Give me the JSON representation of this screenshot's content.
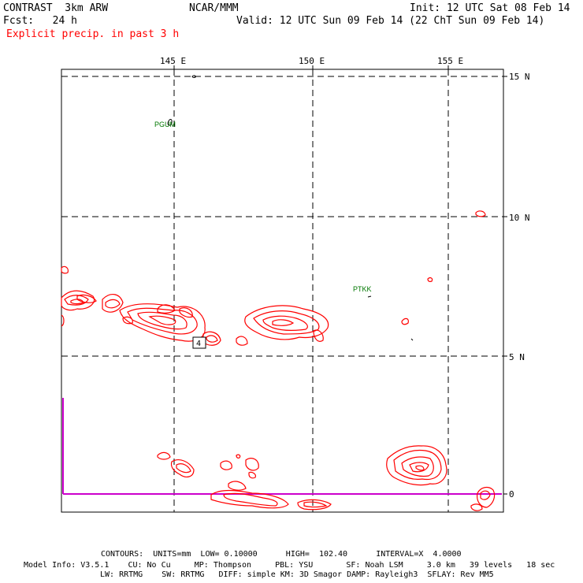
{
  "header": {
    "model_title": "CONTRAST  3km ARW",
    "org": "NCAR/MMM",
    "init": "Init: 12 UTC Sat 08 Feb 14",
    "fcst": "Fcst:   24 h",
    "valid": "Valid: 12 UTC Sun 09 Feb 14 (22 ChT Sun 09 Feb 14)",
    "field": "Explicit precip. in past 3 h"
  },
  "map": {
    "lon_labels": [
      "145 E",
      "150 E",
      "155 E"
    ],
    "lat_labels": [
      "15 N",
      "10 N",
      "5 N",
      "0"
    ],
    "stations": [
      "PGUM",
      "PTKK"
    ],
    "box_label": "4",
    "contour_color": "#ff0000",
    "equator_color": "#cc00cc"
  },
  "footer": {
    "contours": "CONTOURS:  UNITS=mm  LOW= 0.10000      HIGH=  102.40      INTERVAL=X  4.0000",
    "model_info_1": "Model Info: V3.5.1    CU: No Cu     MP: Thompson     PBL: YSU       SF: Noah LSM     3.0 km   39 levels   18 sec",
    "model_info_2": "LW: RRTMG    SW: RRTMG   DIFF: simple KM: 3D Smagor DAMP: Rayleigh3  SFLAY: Rev MM5"
  }
}
